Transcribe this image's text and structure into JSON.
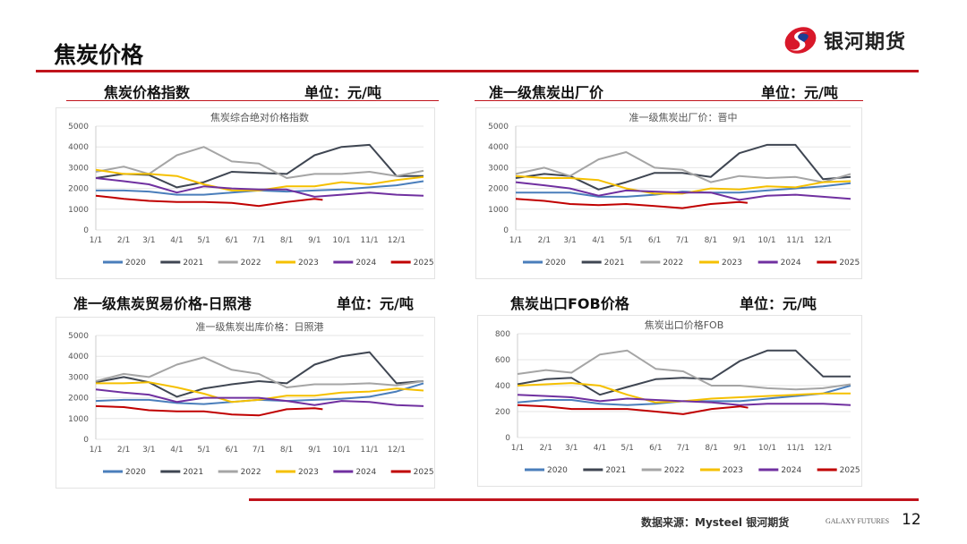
{
  "header": {
    "title": "焦炭价格",
    "logo_text": "银河期货",
    "brand_color": "#c0141c"
  },
  "panels": [
    {
      "heading": "焦炭价格指数",
      "unit": "单位：元/吨"
    },
    {
      "heading": "准一级焦炭出厂价",
      "unit": "单位：元/吨"
    },
    {
      "heading": "准一级焦炭贸易价格-日照港",
      "unit": "单位：元/吨"
    },
    {
      "heading": "焦炭出口FOB价格",
      "unit": "单位：元/吨"
    }
  ],
  "footer": {
    "source": "数据来源：Mysteel 银河期货",
    "brand_en": "GALAXY FUTURES",
    "page": "12"
  },
  "chart_data": [
    {
      "type": "line",
      "title": "焦炭综合绝对价格指数",
      "ylim": [
        0,
        5000
      ],
      "yticks": [
        0,
        1000,
        2000,
        3000,
        4000,
        5000
      ],
      "xticks": [
        "1/1",
        "2/1",
        "3/1",
        "4/1",
        "5/1",
        "6/1",
        "7/1",
        "8/1",
        "9/1",
        "10/1",
        "11/1",
        "12/1"
      ],
      "legend": "bottom",
      "x": [
        "1/1",
        "2/1",
        "3/1",
        "4/1",
        "5/1",
        "6/1",
        "7/1",
        "8/1",
        "9/1",
        "10/1",
        "11/1",
        "12/1",
        "12/31"
      ],
      "series": [
        {
          "name": "2020",
          "color": "#4a7ebb",
          "values": [
            1900,
            1900,
            1850,
            1700,
            1700,
            1800,
            1900,
            1850,
            1900,
            1950,
            2050,
            2150,
            2350
          ]
        },
        {
          "name": "2021",
          "color": "#3f4652",
          "values": [
            2500,
            2700,
            2650,
            2050,
            2300,
            2800,
            2750,
            2700,
            3600,
            4000,
            4100,
            2600,
            2600
          ]
        },
        {
          "name": "2022",
          "color": "#a5a5a5",
          "values": [
            2800,
            3050,
            2700,
            3600,
            4000,
            3300,
            3200,
            2500,
            2700,
            2700,
            2800,
            2600,
            2850
          ]
        },
        {
          "name": "2023",
          "color": "#f5c000",
          "values": [
            2900,
            2700,
            2700,
            2600,
            2200,
            1900,
            1900,
            2100,
            2100,
            2300,
            2200,
            2400,
            2550
          ]
        },
        {
          "name": "2024",
          "color": "#7030a0",
          "values": [
            2500,
            2350,
            2200,
            1800,
            2100,
            2000,
            1950,
            1950,
            1600,
            1700,
            1800,
            1700,
            1650
          ]
        },
        {
          "name": "2025",
          "color": "#c00000",
          "values": [
            1650,
            1500,
            1400,
            1350,
            1350,
            1300,
            1150,
            1350,
            1500,
            1450
          ],
          "x": [
            "1/1",
            "2/1",
            "3/1",
            "4/1",
            "5/1",
            "6/1",
            "7/1",
            "8/1",
            "9/1",
            "9/10"
          ]
        }
      ]
    },
    {
      "type": "line",
      "title": "准一级焦炭出厂价：晋中",
      "ylim": [
        0,
        5000
      ],
      "yticks": [
        0,
        1000,
        2000,
        3000,
        4000,
        5000
      ],
      "xticks": [
        "1/1",
        "2/1",
        "3/1",
        "4/1",
        "5/1",
        "6/1",
        "7/1",
        "8/1",
        "9/1",
        "10/1",
        "11/1",
        "12/1"
      ],
      "legend": "bottom",
      "x": [
        "1/1",
        "2/1",
        "3/1",
        "4/1",
        "5/1",
        "6/1",
        "7/1",
        "8/1",
        "9/1",
        "10/1",
        "11/1",
        "12/1",
        "12/31"
      ],
      "series": [
        {
          "name": "2020",
          "color": "#4a7ebb",
          "values": [
            1800,
            1800,
            1800,
            1600,
            1600,
            1700,
            1850,
            1800,
            1800,
            1900,
            2000,
            2100,
            2250
          ]
        },
        {
          "name": "2021",
          "color": "#3f4652",
          "values": [
            2500,
            2700,
            2600,
            1950,
            2300,
            2750,
            2750,
            2550,
            3700,
            4100,
            4100,
            2450,
            2550
          ]
        },
        {
          "name": "2022",
          "color": "#a5a5a5",
          "values": [
            2700,
            3000,
            2600,
            3400,
            3750,
            3000,
            2900,
            2300,
            2600,
            2500,
            2550,
            2300,
            2700
          ]
        },
        {
          "name": "2023",
          "color": "#f5c000",
          "values": [
            2600,
            2500,
            2500,
            2400,
            2000,
            1750,
            1750,
            2000,
            1950,
            2100,
            2050,
            2300,
            2350
          ]
        },
        {
          "name": "2024",
          "color": "#7030a0",
          "values": [
            2300,
            2150,
            2000,
            1650,
            1900,
            1850,
            1800,
            1800,
            1450,
            1650,
            1700,
            1600,
            1500
          ]
        },
        {
          "name": "2025",
          "color": "#c00000",
          "values": [
            1500,
            1400,
            1250,
            1200,
            1250,
            1150,
            1050,
            1250,
            1350,
            1300
          ],
          "x": [
            "1/1",
            "2/1",
            "3/1",
            "4/1",
            "5/1",
            "6/1",
            "7/1",
            "8/1",
            "9/1",
            "9/10"
          ]
        }
      ]
    },
    {
      "type": "line",
      "title": "准一级焦炭出库价格：日照港",
      "ylim": [
        0,
        5000
      ],
      "yticks": [
        0,
        1000,
        2000,
        3000,
        4000,
        5000
      ],
      "xticks": [
        "1/1",
        "2/1",
        "3/1",
        "4/1",
        "5/1",
        "6/1",
        "7/1",
        "8/1",
        "9/1",
        "10/1",
        "11/1",
        "12/1"
      ],
      "legend": "bottom",
      "x": [
        "1/1",
        "2/1",
        "3/1",
        "4/1",
        "5/1",
        "6/1",
        "7/1",
        "8/1",
        "9/1",
        "10/1",
        "11/1",
        "12/1",
        "12/31"
      ],
      "series": [
        {
          "name": "2020",
          "color": "#4a7ebb",
          "values": [
            1850,
            1900,
            1900,
            1750,
            1700,
            1800,
            1900,
            1850,
            1900,
            1950,
            2050,
            2300,
            2700
          ]
        },
        {
          "name": "2021",
          "color": "#3f4652",
          "values": [
            2750,
            3000,
            2750,
            2050,
            2450,
            2650,
            2800,
            2700,
            3600,
            4000,
            4200,
            2700,
            2800
          ]
        },
        {
          "name": "2022",
          "color": "#a5a5a5",
          "values": [
            2800,
            3150,
            3000,
            3600,
            3950,
            3350,
            3150,
            2500,
            2650,
            2650,
            2700,
            2600,
            2800
          ]
        },
        {
          "name": "2023",
          "color": "#f5c000",
          "values": [
            2700,
            2700,
            2750,
            2500,
            2200,
            1800,
            1900,
            2100,
            2100,
            2250,
            2300,
            2450,
            2350
          ]
        },
        {
          "name": "2024",
          "color": "#7030a0",
          "values": [
            2400,
            2250,
            2150,
            1800,
            2000,
            2000,
            2000,
            1850,
            1650,
            1850,
            1800,
            1650,
            1600
          ]
        },
        {
          "name": "2025",
          "color": "#c00000",
          "values": [
            1600,
            1550,
            1400,
            1350,
            1350,
            1200,
            1150,
            1450,
            1500,
            1450
          ],
          "x": [
            "1/1",
            "2/1",
            "3/1",
            "4/1",
            "5/1",
            "6/1",
            "7/1",
            "8/1",
            "9/1",
            "9/10"
          ]
        }
      ]
    },
    {
      "type": "line",
      "title": "焦炭出口价格FOB",
      "ylim": [
        0,
        800
      ],
      "yticks": [
        0,
        200,
        400,
        600,
        800
      ],
      "xticks": [
        "1/1",
        "2/1",
        "3/1",
        "4/1",
        "5/1",
        "6/1",
        "7/1",
        "8/1",
        "9/1",
        "10/1",
        "11/1",
        "12/1"
      ],
      "legend": "bottom",
      "x": [
        "1/1",
        "2/1",
        "3/1",
        "4/1",
        "5/1",
        "6/1",
        "7/1",
        "8/1",
        "9/1",
        "10/1",
        "11/1",
        "12/1",
        "12/31"
      ],
      "series": [
        {
          "name": "2020",
          "color": "#4a7ebb",
          "values": [
            270,
            290,
            290,
            260,
            250,
            260,
            280,
            280,
            280,
            300,
            320,
            340,
            400
          ]
        },
        {
          "name": "2021",
          "color": "#3f4652",
          "values": [
            410,
            450,
            460,
            330,
            390,
            450,
            460,
            450,
            590,
            670,
            670,
            470,
            470
          ]
        },
        {
          "name": "2022",
          "color": "#a5a5a5",
          "values": [
            490,
            520,
            500,
            640,
            670,
            530,
            510,
            400,
            400,
            380,
            370,
            380,
            410
          ]
        },
        {
          "name": "2023",
          "color": "#f5c000",
          "values": [
            400,
            410,
            420,
            400,
            330,
            270,
            280,
            300,
            310,
            320,
            330,
            340,
            340
          ]
        },
        {
          "name": "2024",
          "color": "#7030a0",
          "values": [
            330,
            320,
            310,
            280,
            300,
            290,
            280,
            270,
            250,
            260,
            260,
            260,
            250
          ]
        },
        {
          "name": "2025",
          "color": "#c00000",
          "values": [
            250,
            240,
            220,
            220,
            220,
            200,
            180,
            220,
            240,
            230
          ],
          "x": [
            "1/1",
            "2/1",
            "3/1",
            "4/1",
            "5/1",
            "6/1",
            "7/1",
            "8/1",
            "9/1",
            "9/10"
          ]
        }
      ]
    }
  ]
}
